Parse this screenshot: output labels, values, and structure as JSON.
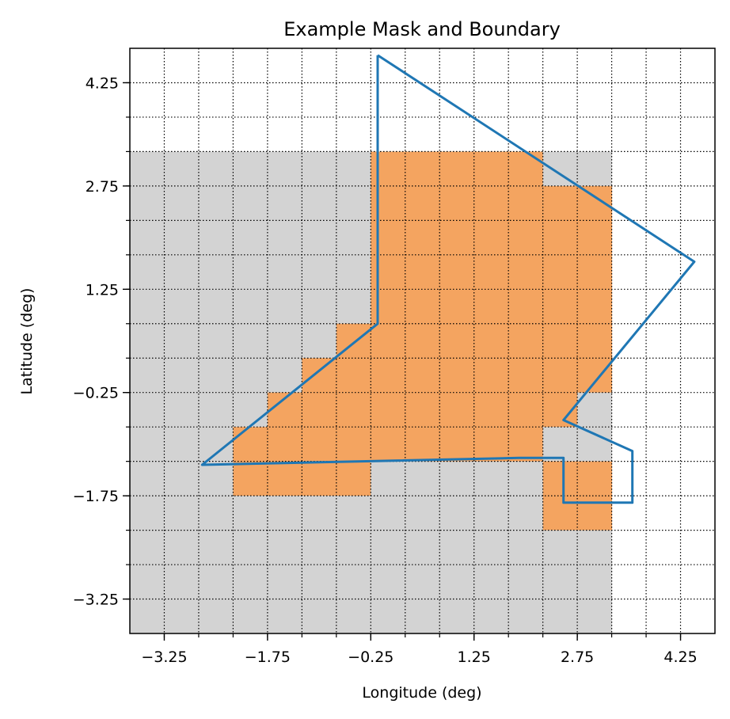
{
  "chart_data": {
    "type": "heatmap",
    "title": "Example Mask and Boundary",
    "xlabel": "Longitude (deg)",
    "ylabel": "Latitude (deg)",
    "xlim": [
      -3.75,
      4.75
    ],
    "ylim": [
      -3.75,
      4.75
    ],
    "x_tick_labels": [
      "−3.25",
      "−1.75",
      "−0.25",
      "1.25",
      "2.75",
      "4.25"
    ],
    "y_tick_labels": [
      "−3.25",
      "−1.75",
      "−0.25",
      "1.25",
      "2.75",
      "4.25"
    ],
    "x_ticks": [
      -3.25,
      -1.75,
      -0.25,
      1.25,
      2.75,
      4.25
    ],
    "y_ticks": [
      -3.25,
      -1.75,
      -0.25,
      1.25,
      2.75,
      4.25
    ],
    "grid": true,
    "grid_style": "dotted",
    "cell_size": 0.5,
    "grid_origin": [
      -3.75,
      -3.75
    ],
    "colors": {
      "outside": "#d3d3d3",
      "inside": "#f4a460",
      "boundary": "#1f77b4"
    },
    "mask_legend": {
      "0": "gray cell",
      "1": "orange cell",
      "-1": "no cell"
    },
    "mask_rows_top_to_bottom": [
      [
        -1,
        -1,
        -1,
        -1,
        -1,
        -1,
        -1,
        -1,
        -1,
        -1,
        -1,
        -1,
        -1,
        -1,
        -1,
        -1,
        -1
      ],
      [
        -1,
        -1,
        -1,
        -1,
        -1,
        -1,
        -1,
        -1,
        -1,
        -1,
        -1,
        -1,
        -1,
        -1,
        -1,
        -1,
        -1
      ],
      [
        -1,
        -1,
        -1,
        -1,
        -1,
        -1,
        -1,
        -1,
        -1,
        -1,
        -1,
        -1,
        -1,
        -1,
        -1,
        -1,
        -1
      ],
      [
        0,
        0,
        0,
        0,
        0,
        0,
        0,
        1,
        1,
        1,
        1,
        1,
        0,
        0,
        -1,
        -1,
        -1
      ],
      [
        0,
        0,
        0,
        0,
        0,
        0,
        0,
        1,
        1,
        1,
        1,
        1,
        1,
        1,
        -1,
        -1,
        -1
      ],
      [
        0,
        0,
        0,
        0,
        0,
        0,
        0,
        1,
        1,
        1,
        1,
        1,
        1,
        1,
        -1,
        -1,
        -1
      ],
      [
        0,
        0,
        0,
        0,
        0,
        0,
        0,
        1,
        1,
        1,
        1,
        1,
        1,
        1,
        -1,
        -1,
        -1
      ],
      [
        0,
        0,
        0,
        0,
        0,
        0,
        0,
        1,
        1,
        1,
        1,
        1,
        1,
        1,
        -1,
        -1,
        -1
      ],
      [
        0,
        0,
        0,
        0,
        0,
        0,
        1,
        1,
        1,
        1,
        1,
        1,
        1,
        1,
        -1,
        -1,
        -1
      ],
      [
        0,
        0,
        0,
        0,
        0,
        1,
        1,
        1,
        1,
        1,
        1,
        1,
        1,
        1,
        -1,
        -1,
        -1
      ],
      [
        0,
        0,
        0,
        0,
        1,
        1,
        1,
        1,
        1,
        1,
        1,
        1,
        1,
        0,
        -1,
        -1,
        -1
      ],
      [
        0,
        0,
        0,
        1,
        1,
        1,
        1,
        1,
        1,
        1,
        1,
        1,
        0,
        0,
        -1,
        -1,
        -1
      ],
      [
        0,
        0,
        0,
        1,
        1,
        1,
        1,
        0,
        0,
        0,
        0,
        0,
        1,
        1,
        -1,
        -1,
        -1
      ],
      [
        0,
        0,
        0,
        0,
        0,
        0,
        0,
        0,
        0,
        0,
        0,
        0,
        1,
        1,
        -1,
        -1,
        -1
      ],
      [
        0,
        0,
        0,
        0,
        0,
        0,
        0,
        0,
        0,
        0,
        0,
        0,
        0,
        0,
        -1,
        -1,
        -1
      ],
      [
        0,
        0,
        0,
        0,
        0,
        0,
        0,
        0,
        0,
        0,
        0,
        0,
        0,
        0,
        -1,
        -1,
        -1
      ],
      [
        0,
        0,
        0,
        0,
        0,
        0,
        0,
        0,
        0,
        0,
        0,
        0,
        0,
        0,
        -1,
        -1,
        -1
      ]
    ],
    "boundary_polygon": [
      [
        -0.15,
        4.65
      ],
      [
        4.45,
        1.65
      ],
      [
        2.55,
        -0.65
      ],
      [
        3.55,
        -1.1
      ],
      [
        3.55,
        -1.85
      ],
      [
        2.55,
        -1.85
      ],
      [
        2.55,
        -1.2
      ],
      [
        1.9,
        -1.2
      ],
      [
        -2.7,
        -1.3
      ],
      [
        -0.15,
        0.75
      ],
      [
        -0.15,
        4.65
      ]
    ]
  }
}
